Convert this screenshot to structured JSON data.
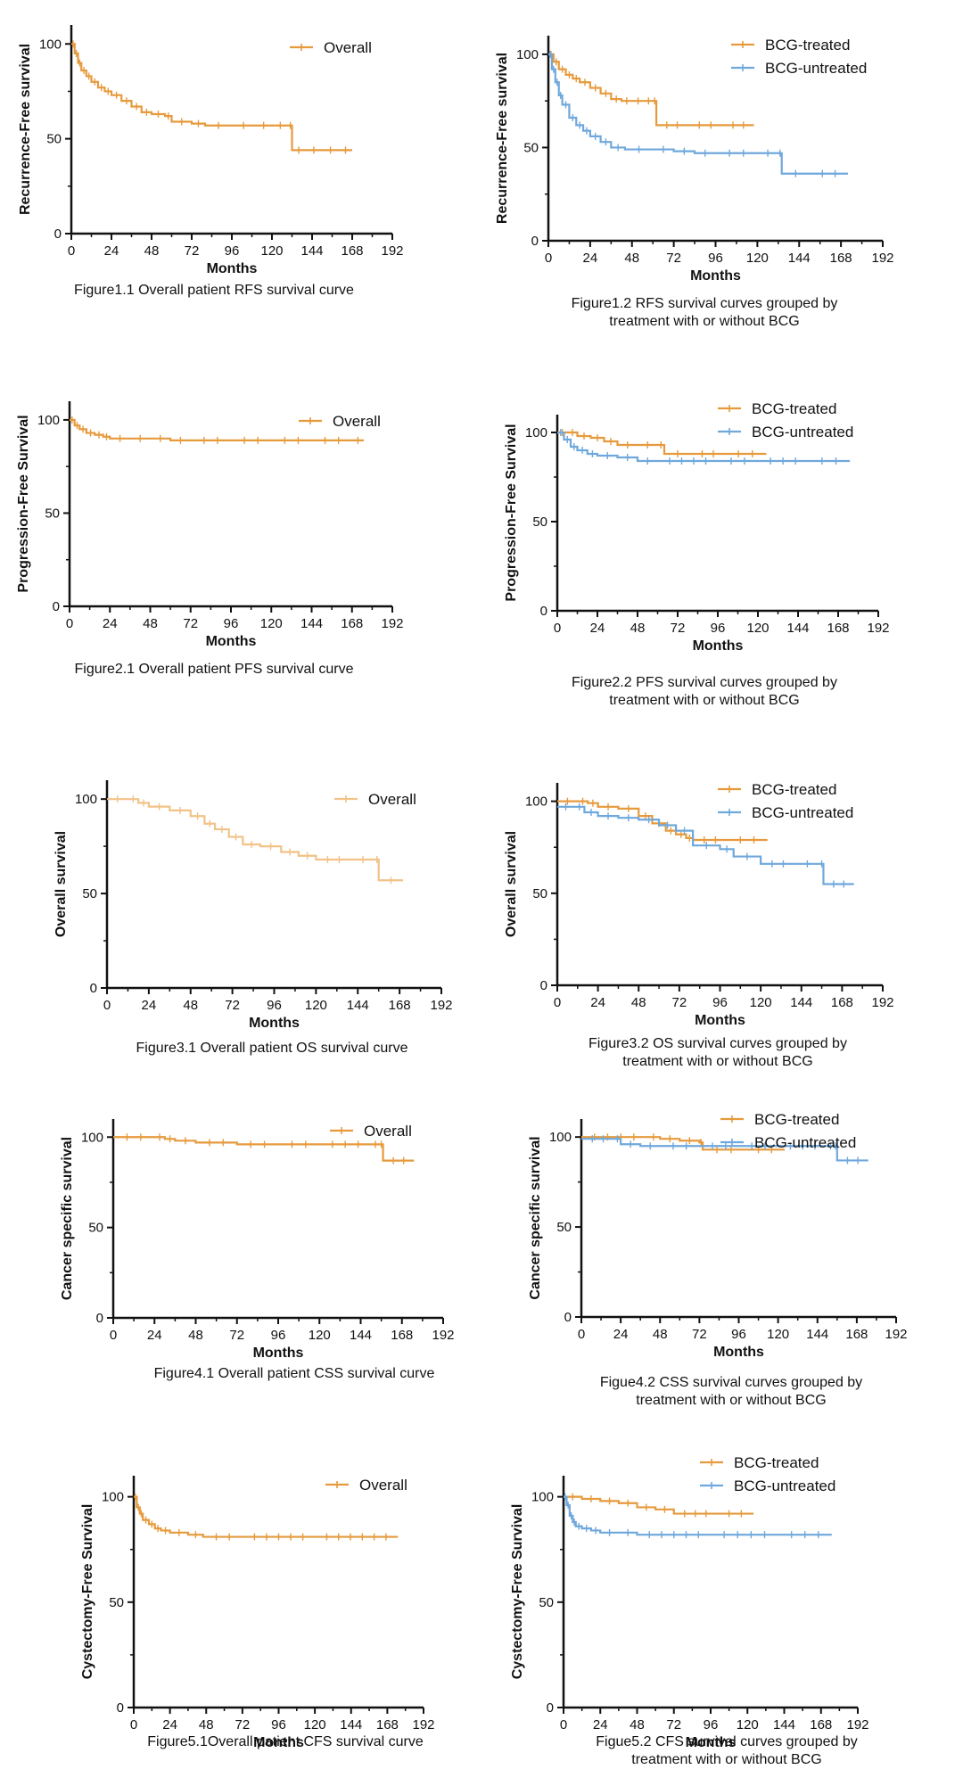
{
  "colors": {
    "bcg_treated": "#E69A3C",
    "bcg_untreated": "#6FA8DC",
    "overall": "#E69A3C",
    "overall_os": "#F2C288",
    "axis": "#111111"
  },
  "chart_data": [
    {
      "id": "fig1_1",
      "type": "line",
      "ylabel": "Recurrence-Free survival",
      "xlabel": "Months",
      "caption": [
        "Figure1.1 Overall patient RFS survival curve"
      ],
      "xlim": [
        0,
        192
      ],
      "ylim": [
        0,
        110
      ],
      "xticks": [
        0,
        24,
        48,
        72,
        96,
        120,
        144,
        168,
        192
      ],
      "yticks": [
        0,
        50,
        100
      ],
      "legend_position": "top-right",
      "grid": false,
      "series": [
        {
          "name": "Overall",
          "color": "#E69A3C",
          "x": [
            0,
            2,
            4,
            6,
            9,
            12,
            16,
            20,
            24,
            30,
            36,
            42,
            48,
            56,
            60,
            72,
            80,
            96,
            110,
            120,
            130,
            132,
            140,
            150,
            160,
            168
          ],
          "y": [
            100,
            95,
            90,
            86,
            83,
            80,
            77,
            75,
            73,
            70,
            67,
            64,
            63,
            62,
            59,
            58,
            57,
            57,
            57,
            57,
            57,
            44,
            44,
            44,
            44,
            44
          ]
        }
      ]
    },
    {
      "id": "fig1_2",
      "type": "line",
      "ylabel": "Recurrence-Free survival",
      "xlabel": "Months",
      "caption": [
        "Figure1.2 RFS survival curves grouped by",
        "treatment with or without BCG"
      ],
      "xlim": [
        0,
        192
      ],
      "ylim": [
        0,
        110
      ],
      "xticks": [
        0,
        24,
        48,
        72,
        96,
        120,
        144,
        168,
        192
      ],
      "yticks": [
        0,
        50,
        100
      ],
      "legend_position": "top-right",
      "grid": false,
      "series": [
        {
          "name": "BCG-treated",
          "color": "#E69A3C",
          "x": [
            0,
            3,
            6,
            10,
            14,
            18,
            24,
            30,
            36,
            42,
            48,
            55,
            60,
            62,
            80,
            100,
            118
          ],
          "y": [
            100,
            96,
            92,
            89,
            87,
            85,
            82,
            79,
            76,
            75,
            75,
            75,
            75,
            62,
            62,
            62,
            62
          ]
        },
        {
          "name": "BCG-untreated",
          "color": "#6FA8DC",
          "x": [
            0,
            2,
            4,
            6,
            8,
            12,
            16,
            20,
            24,
            30,
            36,
            44,
            60,
            72,
            84,
            96,
            120,
            132,
            134,
            150,
            172
          ],
          "y": [
            100,
            92,
            85,
            78,
            73,
            66,
            62,
            59,
            56,
            53,
            50,
            49,
            49,
            48,
            47,
            47,
            47,
            47,
            36,
            36,
            36
          ]
        }
      ]
    },
    {
      "id": "fig2_1",
      "type": "line",
      "ylabel": "Progression-Free Survival",
      "xlabel": "Months",
      "caption": [
        "Figure2.1 Overall patient PFS survival curve"
      ],
      "xlim": [
        0,
        192
      ],
      "ylim": [
        0,
        110
      ],
      "xticks": [
        0,
        24,
        48,
        72,
        96,
        120,
        144,
        168,
        192
      ],
      "yticks": [
        0,
        50,
        100
      ],
      "legend_position": "top-right",
      "grid": false,
      "series": [
        {
          "name": "Overall",
          "color": "#E69A3C",
          "x": [
            0,
            3,
            6,
            10,
            15,
            20,
            24,
            36,
            48,
            60,
            72,
            96,
            120,
            144,
            168,
            175
          ],
          "y": [
            100,
            97,
            95,
            93,
            92,
            91,
            90,
            90,
            90,
            89,
            89,
            89,
            89,
            89,
            89,
            89
          ]
        }
      ]
    },
    {
      "id": "fig2_2",
      "type": "line",
      "ylabel": "Progression-Free Survival",
      "xlabel": "Months",
      "caption": [
        "Figure2.2 PFS survival curves grouped by",
        "treatment with or without BCG"
      ],
      "xlim": [
        0,
        192
      ],
      "ylim": [
        0,
        110
      ],
      "xticks": [
        0,
        24,
        48,
        72,
        96,
        120,
        144,
        168,
        192
      ],
      "yticks": [
        0,
        50,
        100
      ],
      "legend_position": "top-right",
      "grid": false,
      "series": [
        {
          "name": "BCG-treated",
          "color": "#E69A3C",
          "x": [
            0,
            6,
            12,
            20,
            28,
            36,
            48,
            60,
            64,
            80,
            100,
            125
          ],
          "y": [
            100,
            100,
            98,
            97,
            95,
            93,
            93,
            93,
            88,
            88,
            88,
            88
          ]
        },
        {
          "name": "BCG-untreated",
          "color": "#6FA8DC",
          "x": [
            0,
            4,
            8,
            12,
            18,
            24,
            36,
            48,
            60,
            96,
            120,
            150,
            175
          ],
          "y": [
            100,
            96,
            92,
            90,
            88,
            87,
            86,
            84,
            84,
            84,
            84,
            84,
            84
          ]
        }
      ]
    },
    {
      "id": "fig3_1",
      "type": "line",
      "ylabel": "Overall survival",
      "xlabel": "Months",
      "caption": [
        "Figure3.1 Overall patient OS survival curve"
      ],
      "xlim": [
        0,
        192
      ],
      "ylim": [
        0,
        110
      ],
      "xticks": [
        0,
        24,
        48,
        72,
        96,
        120,
        144,
        168,
        192
      ],
      "yticks": [
        0,
        50,
        100
      ],
      "legend_position": "top-right",
      "grid": false,
      "series": [
        {
          "name": "Overall",
          "color": "#F2C288",
          "x": [
            0,
            12,
            18,
            24,
            36,
            48,
            56,
            62,
            70,
            78,
            88,
            100,
            110,
            120,
            140,
            154,
            156,
            170
          ],
          "y": [
            100,
            100,
            98,
            96,
            94,
            91,
            87,
            84,
            80,
            76,
            75,
            72,
            70,
            68,
            68,
            68,
            57,
            57
          ]
        }
      ]
    },
    {
      "id": "fig3_2",
      "type": "line",
      "ylabel": "Overall survival",
      "xlabel": "Months",
      "caption": [
        "Figure3.2 OS survival curves grouped by",
        "treatment with or without BCG"
      ],
      "xlim": [
        0,
        192
      ],
      "ylim": [
        0,
        110
      ],
      "xticks": [
        0,
        24,
        48,
        72,
        96,
        120,
        144,
        168,
        192
      ],
      "yticks": [
        0,
        50,
        100
      ],
      "legend_position": "top-right",
      "grid": false,
      "series": [
        {
          "name": "BCG-treated",
          "color": "#E69A3C",
          "x": [
            0,
            12,
            18,
            24,
            36,
            48,
            56,
            64,
            70,
            76,
            80,
            100,
            124
          ],
          "y": [
            100,
            100,
            99,
            97,
            96,
            92,
            88,
            84,
            82,
            80,
            79,
            79,
            79
          ]
        },
        {
          "name": "BCG-untreated",
          "color": "#6FA8DC",
          "x": [
            0,
            10,
            16,
            24,
            36,
            48,
            60,
            70,
            80,
            96,
            104,
            120,
            140,
            155,
            157,
            175
          ],
          "y": [
            97,
            97,
            94,
            92,
            91,
            90,
            87,
            84,
            76,
            74,
            70,
            66,
            66,
            66,
            55,
            55
          ]
        }
      ]
    },
    {
      "id": "fig4_1",
      "type": "line",
      "ylabel": "Cancer specific survival",
      "xlabel": "Months",
      "caption": [
        "Figure4.1 Overall patient CSS survival curve"
      ],
      "xlim": [
        0,
        192
      ],
      "ylim": [
        0,
        110
      ],
      "xticks": [
        0,
        24,
        48,
        72,
        96,
        120,
        144,
        168,
        192
      ],
      "yticks": [
        0,
        50,
        100
      ],
      "legend_position": "top-right",
      "grid": false,
      "series": [
        {
          "name": "Overall",
          "color": "#E69A3C",
          "x": [
            0,
            24,
            30,
            36,
            48,
            72,
            96,
            120,
            150,
            155,
            157,
            175
          ],
          "y": [
            100,
            100,
            99,
            98,
            97,
            96,
            96,
            96,
            96,
            96,
            87,
            87
          ]
        }
      ]
    },
    {
      "id": "fig4_2",
      "type": "line",
      "ylabel": "Cancer specific survival",
      "xlabel": "Months",
      "caption": [
        "Figue4.2 CSS survival curves grouped by",
        "treatment with or without BCG"
      ],
      "xlim": [
        0,
        192
      ],
      "ylim": [
        0,
        110
      ],
      "xticks": [
        0,
        24,
        48,
        72,
        96,
        120,
        144,
        168,
        192
      ],
      "yticks": [
        0,
        50,
        100
      ],
      "legend_position": "top-right",
      "grid": false,
      "series": [
        {
          "name": "BCG-treated",
          "color": "#E69A3C",
          "x": [
            0,
            40,
            48,
            60,
            72,
            74,
            100,
            124
          ],
          "y": [
            100,
            100,
            99,
            98,
            97,
            93,
            93,
            93
          ]
        },
        {
          "name": "BCG-untreated",
          "color": "#6FA8DC",
          "x": [
            0,
            20,
            24,
            36,
            48,
            72,
            96,
            120,
            150,
            154,
            156,
            175
          ],
          "y": [
            99,
            99,
            96,
            95,
            95,
            95,
            95,
            95,
            95,
            95,
            87,
            87
          ]
        }
      ]
    },
    {
      "id": "fig5_1",
      "type": "line",
      "ylabel": "Cystectomy-Free Survival",
      "xlabel": "Months",
      "caption": [
        "Figure5.1Overall patient CFS survival curve"
      ],
      "xlim": [
        0,
        192
      ],
      "ylim": [
        0,
        110
      ],
      "xticks": [
        0,
        24,
        48,
        72,
        96,
        120,
        144,
        168,
        192
      ],
      "yticks": [
        0,
        50,
        100
      ],
      "legend_position": "top-right",
      "grid": false,
      "series": [
        {
          "name": "Overall",
          "color": "#E69A3C",
          "x": [
            0,
            2,
            4,
            6,
            10,
            14,
            18,
            24,
            36,
            46,
            72,
            120,
            175
          ],
          "y": [
            100,
            95,
            92,
            89,
            87,
            85,
            84,
            83,
            82,
            81,
            81,
            81,
            81
          ]
        }
      ]
    },
    {
      "id": "fig5_2",
      "type": "line",
      "ylabel": "Cystectomy-Free Survival",
      "xlabel": "Months",
      "caption": [
        "Figue5.2 CFS survival curves grouped by",
        "treatment with or without BCG"
      ],
      "xlim": [
        0,
        192
      ],
      "ylim": [
        0,
        110
      ],
      "xticks": [
        0,
        24,
        48,
        72,
        96,
        120,
        144,
        168,
        192
      ],
      "yticks": [
        0,
        50,
        100
      ],
      "legend_position": "top-right",
      "grid": false,
      "series": [
        {
          "name": "BCG-treated",
          "color": "#E69A3C",
          "x": [
            0,
            12,
            24,
            36,
            48,
            60,
            72,
            100,
            124
          ],
          "y": [
            100,
            99,
            98,
            97,
            95,
            94,
            92,
            92,
            92
          ]
        },
        {
          "name": "BCG-untreated",
          "color": "#6FA8DC",
          "x": [
            0,
            2,
            4,
            6,
            8,
            12,
            18,
            24,
            36,
            48,
            96,
            140,
            175
          ],
          "y": [
            100,
            96,
            91,
            88,
            86,
            85,
            84,
            83,
            83,
            82,
            82,
            82,
            82
          ]
        }
      ]
    }
  ]
}
